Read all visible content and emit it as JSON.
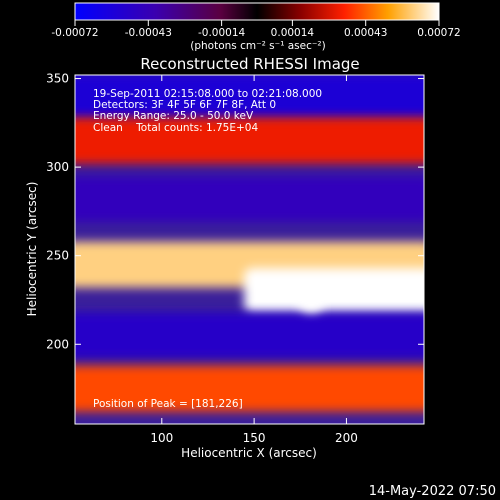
{
  "colorbar": {
    "ticks": [
      "-0.00072",
      "-0.00043",
      "-0.00014",
      "0.00014",
      "0.00043",
      "0.00072"
    ],
    "tick_values": [
      -0.00072,
      -0.00043,
      -0.00014,
      0.00014,
      0.00043,
      0.00072
    ],
    "range": [
      -0.00072,
      0.00072
    ],
    "units": "(photons cm⁻² s⁻¹ asec⁻²)"
  },
  "chart_data": {
    "type": "heatmap",
    "title": "Reconstructed RHESSI Image",
    "xlabel": "Heliocentric X (arcsec)",
    "ylabel": "Heliocentric Y (arcsec)",
    "xlim": [
      53,
      242
    ],
    "ylim": [
      155,
      352
    ],
    "xticks": [
      100,
      150,
      200
    ],
    "yticks": [
      200,
      250,
      300,
      350
    ],
    "annotations": [
      "19-Sep-2011 02:15:08.000 to 02:21:08.000",
      "Detectors: 3F 4F 5F 6F 7F 8F, Att 0",
      "Energy Range: 25.0 - 50.0 keV",
      "Clean    Total counts: 1.75E+04"
    ],
    "peak_label": "Position of Peak = [181,226]",
    "peak_position": [
      181,
      226
    ],
    "bands": [
      {
        "y_center": 340,
        "x_from": 53,
        "x_to": 242,
        "level": -0.00055
      },
      {
        "y_center": 315,
        "x_from": 53,
        "x_to": 242,
        "level": 0.00032
      },
      {
        "y_center": 282,
        "x_from": 53,
        "x_to": 242,
        "level": -0.00045
      },
      {
        "y_center": 245,
        "x_from": 53,
        "x_to": 242,
        "level": 0.00062
      },
      {
        "y_center": 230,
        "x_from": 150,
        "x_to": 242,
        "level": 0.00072
      },
      {
        "y_center": 205,
        "x_from": 53,
        "x_to": 242,
        "level": -0.0005
      },
      {
        "y_center": 175,
        "x_from": 53,
        "x_to": 242,
        "level": 0.0004
      }
    ]
  },
  "footer": {
    "date": "14-May-2022 07:50"
  }
}
